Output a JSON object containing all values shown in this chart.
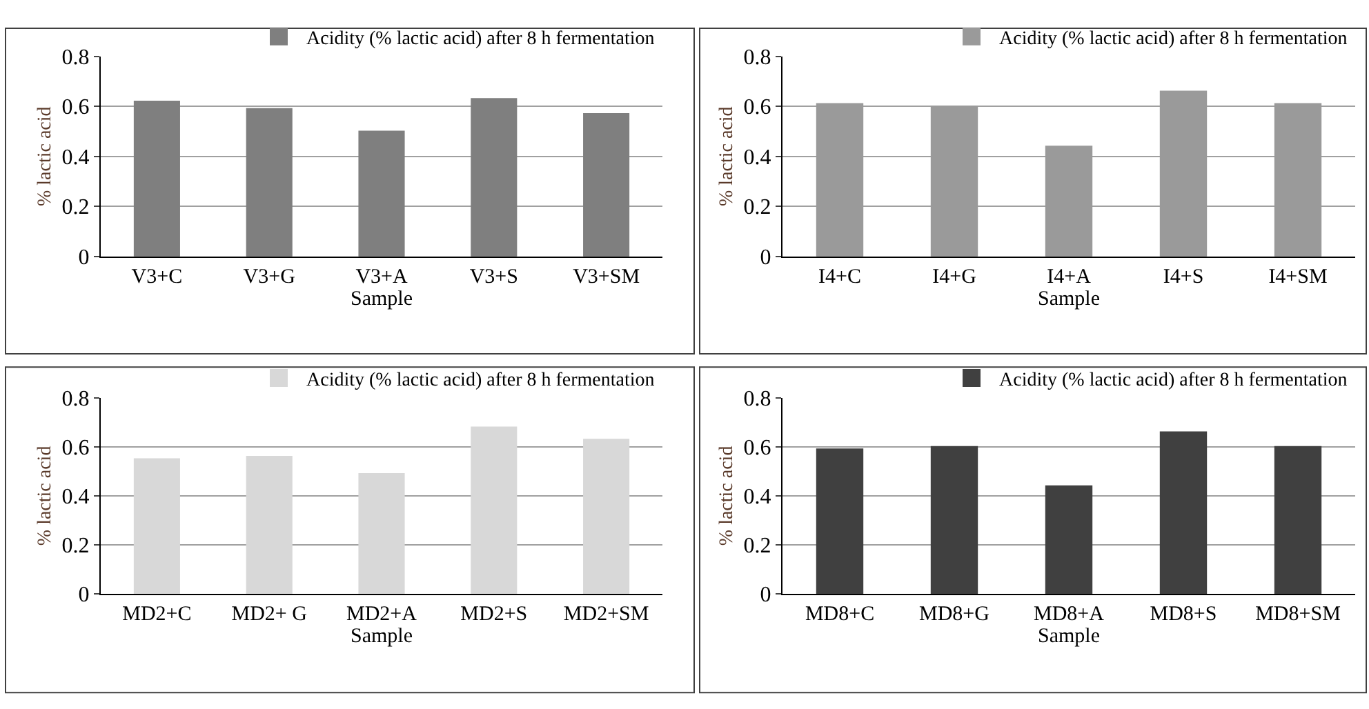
{
  "chart_data": [
    {
      "type": "bar",
      "xlabel": "Sample",
      "ylabel": "% lactic acid",
      "categories": [
        "V3+C",
        "V3+G",
        "V3+A",
        "V3+S",
        "V3+SM"
      ],
      "series": [
        {
          "name": "Acidity (% lactic acid) after 8 h fermentation",
          "color": "#7f7f7f",
          "values": [
            0.62,
            0.59,
            0.5,
            0.63,
            0.57
          ]
        }
      ],
      "ylim": [
        0,
        0.8
      ],
      "yticks": [
        0,
        0.2,
        0.4,
        0.6,
        0.8
      ],
      "grid": "y",
      "legend": "top right"
    },
    {
      "type": "bar",
      "xlabel": "Sample",
      "ylabel": "% lactic acid",
      "categories": [
        "I4+C",
        "I4+G",
        "I4+A",
        "I4+S",
        "I4+SM"
      ],
      "series": [
        {
          "name": "Acidity (% lactic acid) after 8 h fermentation",
          "color": "#9a9a9a",
          "values": [
            0.61,
            0.6,
            0.44,
            0.66,
            0.61
          ]
        }
      ],
      "ylim": [
        0,
        0.8
      ],
      "yticks": [
        0,
        0.2,
        0.4,
        0.6,
        0.8
      ],
      "grid": "y",
      "legend": "top right"
    },
    {
      "type": "bar",
      "xlabel": "Sample",
      "ylabel": "% lactic acid",
      "categories": [
        "MD2+C",
        "MD2+ G",
        "MD2+A",
        "MD2+S",
        "MD2+SM"
      ],
      "series": [
        {
          "name": "Acidity (% lactic acid) after 8 h fermentation",
          "color": "#d8d8d8",
          "values": [
            0.55,
            0.56,
            0.49,
            0.68,
            0.63
          ]
        }
      ],
      "ylim": [
        0,
        0.8
      ],
      "yticks": [
        0,
        0.2,
        0.4,
        0.6,
        0.8
      ],
      "grid": "y",
      "legend": "top right"
    },
    {
      "type": "bar",
      "xlabel": "Sample",
      "ylabel": "% lactic acid",
      "categories": [
        "MD8+C",
        "MD8+G",
        "MD8+A",
        "MD8+S",
        "MD8+SM"
      ],
      "series": [
        {
          "name": "Acidity (% lactic acid) after 8 h fermentation",
          "color": "#404040",
          "values": [
            0.59,
            0.6,
            0.44,
            0.66,
            0.6
          ]
        }
      ],
      "ylim": [
        0,
        0.8
      ],
      "yticks": [
        0,
        0.2,
        0.4,
        0.6,
        0.8
      ],
      "grid": "y",
      "legend": "top right"
    }
  ]
}
